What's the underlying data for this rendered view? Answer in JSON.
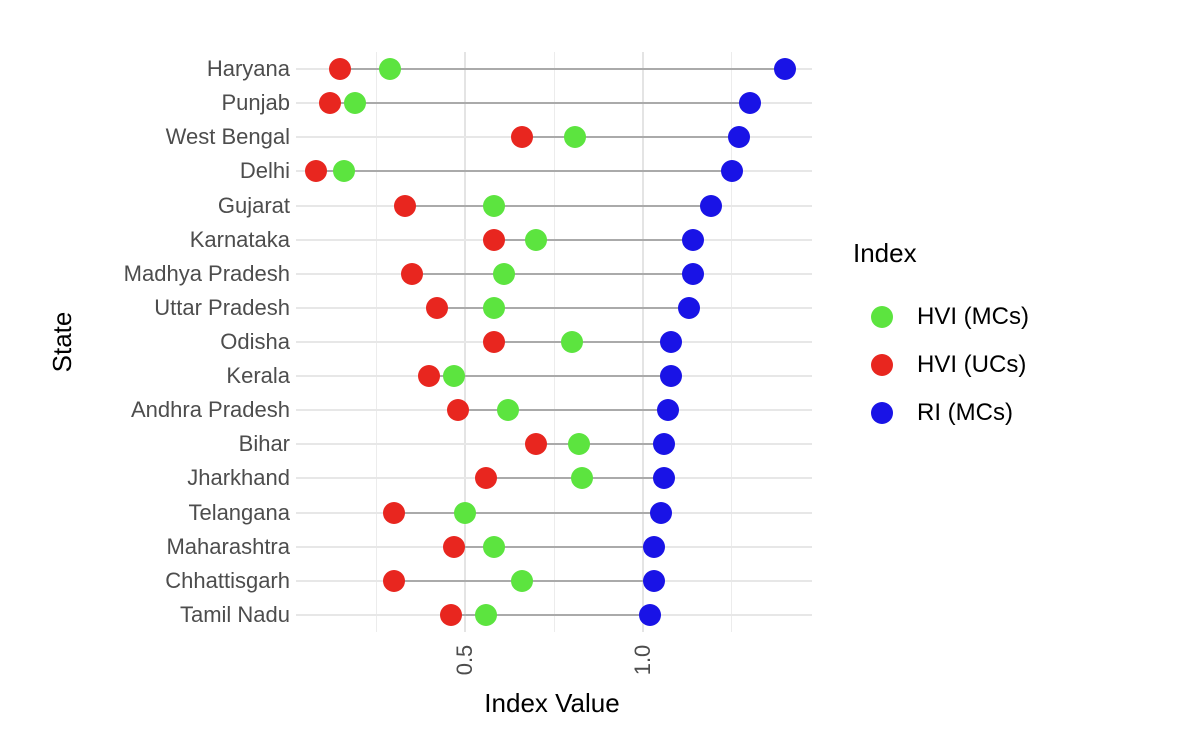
{
  "chart_data": {
    "type": "scatter",
    "subtype": "cleveland-dot-plot",
    "title": "",
    "xlabel": "Index Value",
    "ylabel": "State",
    "categories": [
      "Haryana",
      "Punjab",
      "West Bengal",
      "Delhi",
      "Gujarat",
      "Karnataka",
      "Madhya Pradesh",
      "Uttar Pradesh",
      "Odisha",
      "Kerala",
      "Andhra Pradesh",
      "Bihar",
      "Jharkhand",
      "Telangana",
      "Maharashtra",
      "Chhattisgarh",
      "Tamil Nadu"
    ],
    "series": [
      {
        "name": "HVI (MCs)",
        "color": "#5CE43F",
        "values": [
          0.29,
          0.19,
          0.81,
          0.16,
          0.58,
          0.7,
          0.61,
          0.58,
          0.8,
          0.47,
          0.62,
          0.82,
          0.83,
          0.5,
          0.58,
          0.66,
          0.56
        ]
      },
      {
        "name": "HVI (UCs)",
        "color": "#E8261F",
        "values": [
          0.15,
          0.12,
          0.66,
          0.08,
          0.33,
          0.58,
          0.35,
          0.42,
          0.58,
          0.4,
          0.48,
          0.7,
          0.56,
          0.3,
          0.47,
          0.3,
          0.46
        ]
      },
      {
        "name": "RI (MCs)",
        "color": "#1913E6",
        "values": [
          1.4,
          1.3,
          1.27,
          1.25,
          1.19,
          1.14,
          1.14,
          1.13,
          1.08,
          1.08,
          1.07,
          1.06,
          1.06,
          1.05,
          1.03,
          1.03,
          1.02
        ]
      }
    ],
    "xlim": [
      0.025,
      1.475
    ],
    "x_major_ticks": [
      0.5,
      1.0
    ],
    "x_tick_labels": [
      "0.5",
      "1.0"
    ],
    "x_minor_gridlines": [
      0.25,
      0.75,
      1.25
    ],
    "grid": "on",
    "legend": {
      "title": "Index",
      "position": "right"
    }
  },
  "colors": {
    "background": "#FFFFFF",
    "axis_text": "#4D4D4D",
    "title_text": "#000000",
    "grid_major": "#E4E4E4",
    "grid_minor": "#ECECEC",
    "segment": "#AAAAAA"
  }
}
